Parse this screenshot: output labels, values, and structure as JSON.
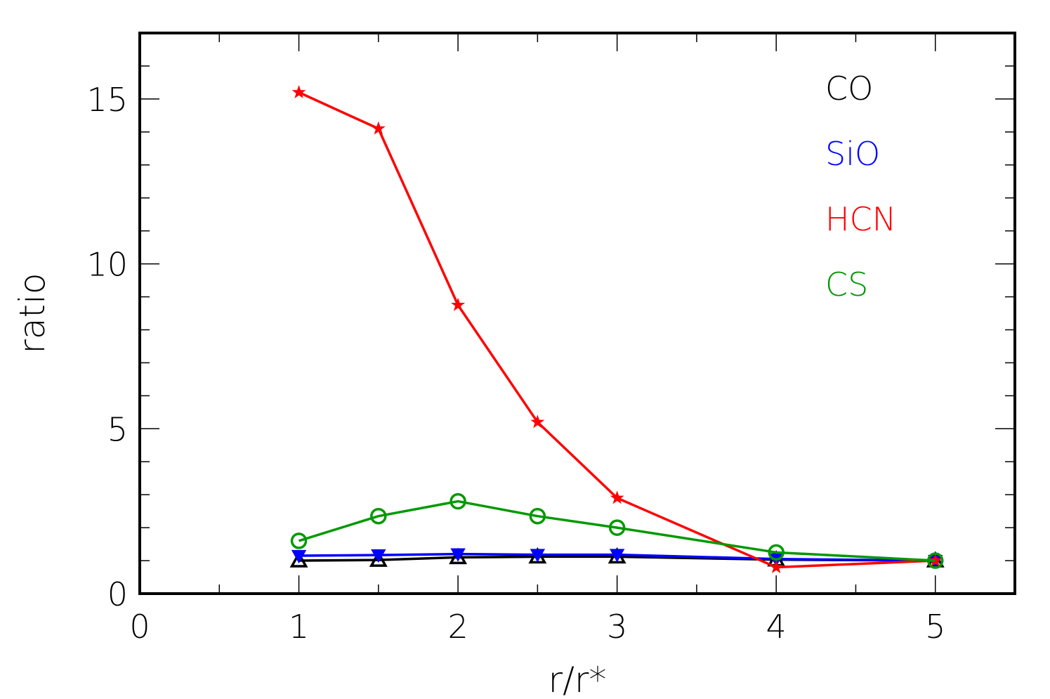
{
  "chart_data": {
    "type": "line",
    "title": "",
    "xlabel": "r/r*",
    "ylabel": "ratio",
    "xlim": [
      0,
      5.5
    ],
    "ylim": [
      0,
      17
    ],
    "x_ticks": [
      0,
      1,
      2,
      3,
      4,
      5
    ],
    "y_ticks": [
      0,
      5,
      10,
      15
    ],
    "x_tick_labels": [
      "0",
      "1",
      "2",
      "3",
      "4",
      "5"
    ],
    "y_tick_labels": [
      "0",
      "5",
      "10",
      "15"
    ],
    "grid": false,
    "legend_placement": "top-right",
    "x": [
      1,
      1.5,
      2,
      2.5,
      3,
      4,
      5
    ],
    "series": [
      {
        "name": "CO",
        "color": "#000000",
        "marker": "triangle-up",
        "values": [
          1.0,
          1.02,
          1.1,
          1.12,
          1.12,
          1.03,
          1.0
        ]
      },
      {
        "name": "SiO",
        "color": "#0000ff",
        "marker": "triangle-down",
        "values": [
          1.15,
          1.17,
          1.2,
          1.18,
          1.18,
          1.05,
          1.0
        ]
      },
      {
        "name": "HCN",
        "color": "#ff0000",
        "marker": "star",
        "values": [
          15.2,
          14.1,
          8.75,
          5.2,
          2.9,
          0.8,
          1.0
        ]
      },
      {
        "name": "CS",
        "color": "#009900",
        "marker": "circle",
        "values": [
          1.6,
          2.35,
          2.8,
          2.35,
          2.0,
          1.25,
          1.0
        ]
      }
    ]
  }
}
